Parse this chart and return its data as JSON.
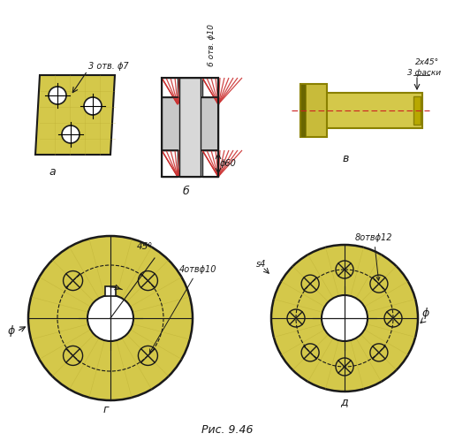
{
  "title": "Рис. 9.46",
  "bg_color": "#ffffff",
  "yellow_fill": "#d4c84a",
  "yellow_fill2": "#c8bb3a",
  "gray_fill": "#a0a0a0",
  "gray_light": "#c8c8c8",
  "red_hatch_color": "#cc3333",
  "line_color": "#1a1a1a",
  "label_a": "а",
  "label_b": "б",
  "label_v": "в",
  "label_g": "г",
  "label_d": "д",
  "ann_3otv7": "3 отв. ϕ7",
  "ann_6otv10": "6 отв. ϕ10",
  "ann_phi60": "ϕ60",
  "ann_2x45": "2х45°",
  "ann_3faski": "3 фаски",
  "ann_45deg": "45°",
  "ann_4otv10": "4отвϕ10",
  "ann_phi_g": "ϕ",
  "ann_8otv12": "8отвϕ12",
  "ann_s4": "s4",
  "ann_phi_d": "ϕ"
}
